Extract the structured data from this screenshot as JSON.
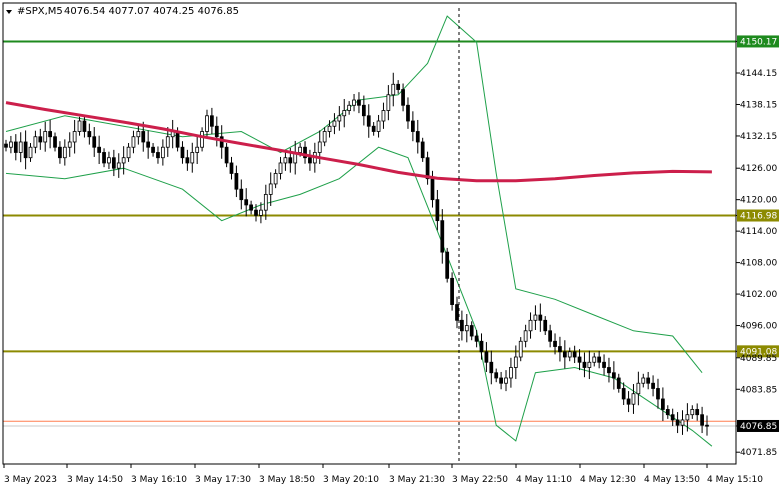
{
  "header": {
    "symbol": "#SPX,M5",
    "ohlc": "4076.54 4077.07 4074.25 4076.85"
  },
  "colors": {
    "background": "#ffffff",
    "candle_up": "#ffffff",
    "candle_down": "#000000",
    "candle_outline": "#000000",
    "bollinger": "#1fa04a",
    "moving_average": "#cc1f4b",
    "level_green": "#1e8a1e",
    "level_olive": "#8c8a00",
    "current_line": "#ff7f50",
    "current_label_bg": "#000000"
  },
  "chart_data": {
    "type": "candlestick",
    "title": "#SPX,M5",
    "ylim": [
      4069.6,
      4157.5
    ],
    "y_ticks": [
      "4150.17",
      "4144.15",
      "4138.15",
      "4132.15",
      "4126.00",
      "4120.00",
      "4116.98",
      "4114.00",
      "4108.00",
      "4102.00",
      "4096.00",
      "4091.08",
      "4089.85",
      "4083.85",
      "4076.85",
      "4071.85"
    ],
    "x_ticks": [
      "3 May 2023",
      "3 May 14:50",
      "3 May 16:10",
      "3 May 17:30",
      "3 May 18:50",
      "3 May 20:10",
      "3 May 21:30",
      "3 May 22:50",
      "4 May 11:10",
      "4 May 12:30",
      "4 May 13:50",
      "4 May 15:10"
    ],
    "levels": [
      {
        "value": 4150.17,
        "label": "4150.17",
        "color": "level_green"
      },
      {
        "value": 4116.98,
        "label": "4116.98",
        "color": "level_olive"
      },
      {
        "value": 4091.08,
        "label": "4091.08",
        "color": "level_olive"
      }
    ],
    "current_price": {
      "value": 4076.85,
      "label": "4076.85"
    },
    "red_line": {
      "value": 4077.75,
      "label": "4077.75"
    },
    "vertical_marker": {
      "time": "3 May 22:50"
    },
    "candles_close": [
      4130,
      4131,
      4129,
      4131,
      4128,
      4130,
      4132,
      4131,
      4133,
      4132,
      4130,
      4128,
      4130,
      4131,
      4133,
      4135,
      4133,
      4132,
      4130,
      4129,
      4127,
      4128,
      4126,
      4127,
      4128,
      4130,
      4132,
      4133,
      4131,
      4130,
      4129,
      4128,
      4130,
      4132,
      4133,
      4130,
      4128,
      4127,
      4129,
      4130,
      4133,
      4136,
      4134,
      4132,
      4130,
      4127,
      4125,
      4122,
      4120,
      4119,
      4118,
      4117,
      4118,
      4121,
      4123,
      4125,
      4127,
      4128,
      4127,
      4129,
      4130,
      4128,
      4127,
      4129,
      4131,
      4133,
      4134,
      4135,
      4136,
      4137,
      4138,
      4139,
      4138,
      4136,
      4134,
      4133,
      4135,
      4137,
      4140,
      4142,
      4141,
      4138,
      4135,
      4133,
      4131,
      4128,
      4124,
      4120,
      4116,
      4110,
      4105,
      4100,
      4097,
      4095,
      4096,
      4094,
      4093,
      4091,
      4089,
      4087,
      4086,
      4085,
      4086,
      4088,
      4090,
      4093,
      4095,
      4097,
      4098,
      4097,
      4095,
      4093,
      4092,
      4091,
      4090,
      4091,
      4090,
      4089,
      4088,
      4089,
      4090,
      4089,
      4088,
      4087,
      4086,
      4084,
      4082,
      4081,
      4083,
      4085,
      4086,
      4085,
      4084,
      4082,
      4080,
      4079,
      4078,
      4077,
      4078,
      4079,
      4080,
      4079,
      4077,
      4076.85
    ],
    "moving_average": [
      [
        0,
        4138.5
      ],
      [
        8,
        4137.2
      ],
      [
        16,
        4136.0
      ],
      [
        24,
        4134.8
      ],
      [
        32,
        4133.5
      ],
      [
        40,
        4132.0
      ],
      [
        48,
        4130.7
      ],
      [
        56,
        4129.4
      ],
      [
        64,
        4128.0
      ],
      [
        72,
        4126.7
      ],
      [
        80,
        4125.2
      ],
      [
        88,
        4124.1
      ],
      [
        96,
        4123.6
      ],
      [
        104,
        4123.6
      ],
      [
        112,
        4124.0
      ],
      [
        120,
        4124.6
      ],
      [
        128,
        4125.1
      ],
      [
        136,
        4125.4
      ],
      [
        144,
        4125.3
      ]
    ],
    "bollinger_upper": [
      [
        0,
        4133
      ],
      [
        12,
        4136
      ],
      [
        24,
        4134
      ],
      [
        36,
        4132
      ],
      [
        48,
        4133
      ],
      [
        56,
        4129
      ],
      [
        64,
        4133
      ],
      [
        72,
        4139
      ],
      [
        80,
        4140
      ],
      [
        86,
        4146
      ],
      [
        90,
        4155
      ],
      [
        96,
        4150
      ],
      [
        100,
        4125
      ],
      [
        104,
        4103
      ],
      [
        112,
        4101
      ],
      [
        120,
        4098
      ],
      [
        128,
        4095
      ],
      [
        136,
        4094
      ],
      [
        142,
        4087
      ]
    ],
    "bollinger_lower": [
      [
        0,
        4125
      ],
      [
        12,
        4124
      ],
      [
        24,
        4126
      ],
      [
        36,
        4122
      ],
      [
        44,
        4116
      ],
      [
        52,
        4119
      ],
      [
        60,
        4121
      ],
      [
        68,
        4124
      ],
      [
        76,
        4130
      ],
      [
        82,
        4128
      ],
      [
        88,
        4114
      ],
      [
        96,
        4095
      ],
      [
        100,
        4077
      ],
      [
        104,
        4074
      ],
      [
        108,
        4087
      ],
      [
        116,
        4088
      ],
      [
        124,
        4086
      ],
      [
        132,
        4081
      ],
      [
        140,
        4076
      ],
      [
        144,
        4073
      ]
    ]
  }
}
